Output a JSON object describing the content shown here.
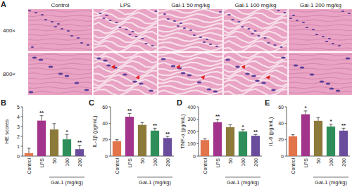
{
  "panel_a": {
    "label": "A",
    "columns": [
      "Control",
      "LPS",
      "Gal-1 50 mg/kg",
      "Gal-1 100 mg/kg",
      "Gal-1 200 mg/kg"
    ],
    "rows": [
      "400×",
      "800×"
    ]
  },
  "chart_data": [
    {
      "type": "bar",
      "title": "B",
      "y_label": "HE scores",
      "x_label": "Gal-1 (mg/kg)",
      "categories": [
        "Control",
        "LPS",
        "50",
        "100",
        "200"
      ],
      "values": [
        0.3,
        3.6,
        2.7,
        1.7,
        0.7
      ],
      "errors": [
        0.5,
        0.5,
        0.6,
        0.5,
        0.4
      ],
      "colors": [
        "#e2744c",
        "#a2348c",
        "#8c7a3a",
        "#2f8f5a",
        "#6a4c9c"
      ],
      "ylim": [
        0,
        5
      ],
      "yticks": [
        0,
        1,
        2,
        3,
        4,
        5
      ],
      "annotations": [
        {
          "index": 1,
          "text": "**"
        },
        {
          "index": 3,
          "text": "*"
        },
        {
          "index": 4,
          "text": "**"
        }
      ]
    },
    {
      "type": "bar",
      "title": "C",
      "y_label": "IL-1β (pg/mL)",
      "x_label": "Gal-1 (mg/kg)",
      "categories": [
        "Control",
        "LPS",
        "50",
        "100",
        "200"
      ],
      "values": [
        18,
        48,
        38,
        31,
        22
      ],
      "errors": [
        2,
        4,
        3,
        3,
        2
      ],
      "colors": [
        "#e2744c",
        "#a2348c",
        "#8c7a3a",
        "#2f8f5a",
        "#6a4c9c"
      ],
      "ylim": [
        0,
        60
      ],
      "yticks": [
        0,
        20,
        40,
        60
      ],
      "annotations": [
        {
          "index": 1,
          "text": "**"
        },
        {
          "index": 3,
          "text": "**"
        },
        {
          "index": 4,
          "text": "**"
        }
      ]
    },
    {
      "type": "bar",
      "title": "D",
      "y_label": "TNF-α (pg/mL)",
      "x_label": "Gal-1 (mg/kg)",
      "categories": [
        "Control",
        "LPS",
        "50",
        "100",
        "200"
      ],
      "values": [
        130,
        275,
        235,
        200,
        165
      ],
      "errors": [
        10,
        25,
        20,
        15,
        10
      ],
      "colors": [
        "#e2744c",
        "#a2348c",
        "#8c7a3a",
        "#2f8f5a",
        "#6a4c9c"
      ],
      "ylim": [
        0,
        400
      ],
      "yticks": [
        0,
        100,
        200,
        300,
        400
      ],
      "annotations": [
        {
          "index": 1,
          "text": "**"
        },
        {
          "index": 3,
          "text": "*"
        },
        {
          "index": 4,
          "text": "**"
        }
      ]
    },
    {
      "type": "bar",
      "title": "E",
      "y_label": "IL-6 (pg/mL)",
      "x_label": "Gal-1 (mg/kg)",
      "categories": [
        "Control",
        "LPS",
        "50",
        "100",
        "200"
      ],
      "values": [
        24,
        51,
        43,
        36,
        31
      ],
      "errors": [
        2,
        4,
        4,
        3,
        3
      ],
      "colors": [
        "#e2744c",
        "#a2348c",
        "#8c7a3a",
        "#2f8f5a",
        "#6a4c9c"
      ],
      "ylim": [
        0,
        60
      ],
      "yticks": [
        0,
        20,
        40,
        60
      ],
      "annotations": [
        {
          "index": 1,
          "text": "*"
        },
        {
          "index": 3,
          "text": "*"
        },
        {
          "index": 4,
          "text": "**"
        }
      ]
    }
  ]
}
